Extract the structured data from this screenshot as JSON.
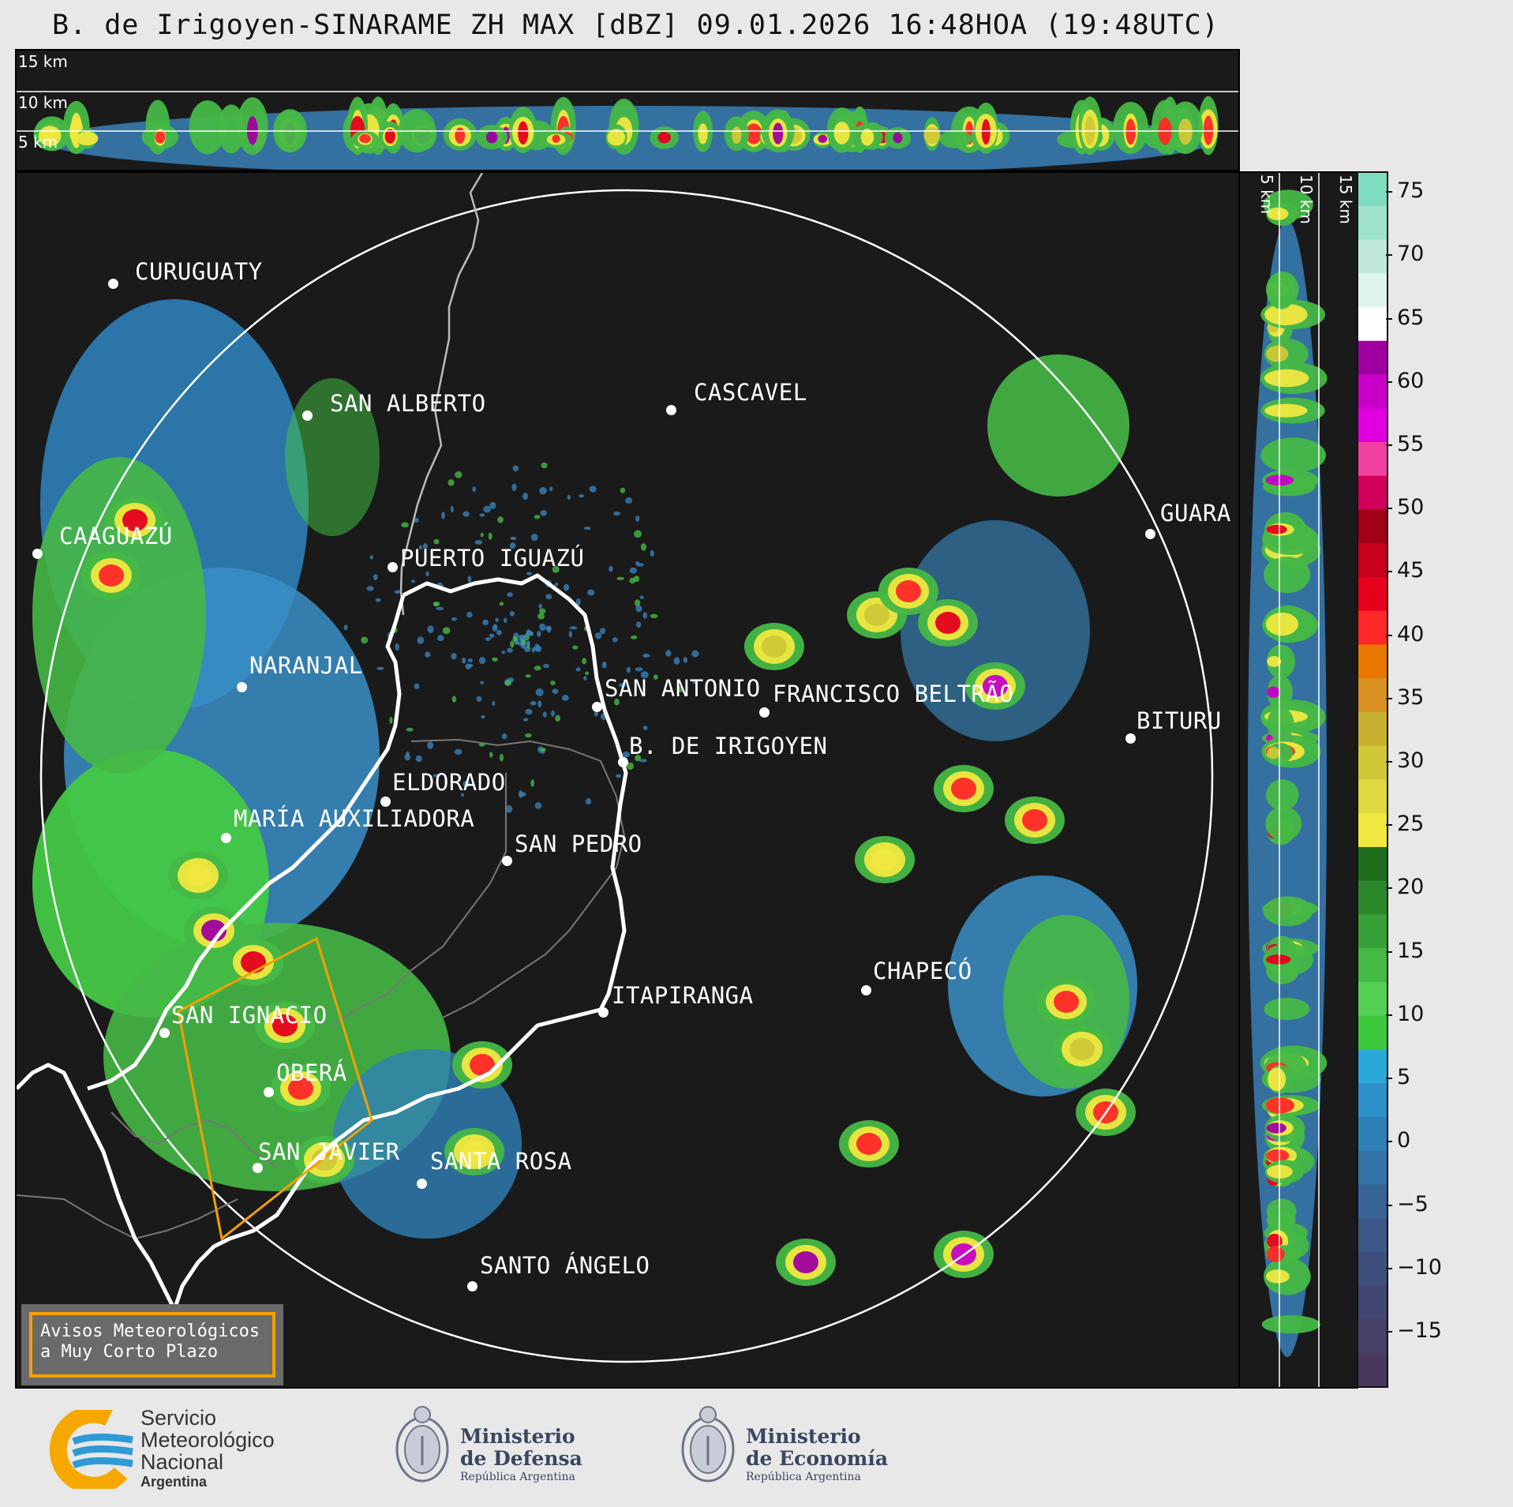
{
  "title": "B. de Irigoyen-SINARAME ZH MAX [dBZ] 09.01.2026 16:48HOA (19:48UTC)",
  "top_panel": {
    "km_labels": [
      "15 km",
      "10 km",
      "5 km"
    ]
  },
  "side_panel": {
    "km_labels": [
      "5 km",
      "10 km",
      "15 km"
    ]
  },
  "colorbar": {
    "ticks": [
      "75",
      "70",
      "65",
      "60",
      "55",
      "50",
      "45",
      "40",
      "35",
      "30",
      "25",
      "20",
      "15",
      "10",
      "5",
      "0",
      "−5",
      "−10",
      "−15"
    ]
  },
  "cities": [
    {
      "name": "CURUGUATY"
    },
    {
      "name": "SAN ALBERTO"
    },
    {
      "name": "CASCAVEL"
    },
    {
      "name": "CAAGUAZÚ"
    },
    {
      "name": "GUARA"
    },
    {
      "name": "PUERTO IGUAZÚ"
    },
    {
      "name": "NARANJAL"
    },
    {
      "name": "SAN ANTONIO"
    },
    {
      "name": "FRANCISCO BELTRÃO"
    },
    {
      "name": "BITURU"
    },
    {
      "name": "B. DE IRIGOYEN"
    },
    {
      "name": "ELDORADO"
    },
    {
      "name": "MARÍA AUXILIADORA"
    },
    {
      "name": "SAN PEDRO"
    },
    {
      "name": "CHAPECÓ"
    },
    {
      "name": "ITAPIRANGA"
    },
    {
      "name": "SAN IGNACIO"
    },
    {
      "name": "OBERÁ"
    },
    {
      "name": "SAN JAVIER"
    },
    {
      "name": "SANTA ROSA"
    },
    {
      "name": "SANTO ÁNGELO"
    }
  ],
  "warning_box": {
    "line1": "Avisos Meteorológicos",
    "line2": "a Muy Corto Plazo"
  },
  "footer": {
    "smn": [
      "Servicio",
      "Meteorológico",
      "Nacional",
      "Argentina"
    ],
    "defensa": [
      "Ministerio",
      "de Defensa",
      "República Argentina"
    ],
    "economia": [
      "Ministerio",
      "de Economía",
      "República Argentina"
    ]
  },
  "colors": {
    "background": "#1a1a1a",
    "warning_border": "#f5a000",
    "smn_yellow": "#f7a800",
    "smn_blue": "#2e9ad6"
  }
}
